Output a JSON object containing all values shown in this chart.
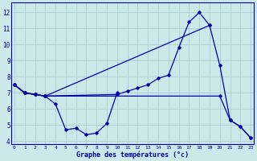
{
  "xlabel": "Graphe des températures (°c)",
  "bg_color": "#cce8e8",
  "line_color": "#0000aa",
  "grid_color": "#aad0d0",
  "xlim": [
    -0.3,
    23.3
  ],
  "ylim": [
    3.8,
    12.6
  ],
  "yticks": [
    4,
    5,
    6,
    7,
    8,
    9,
    10,
    11,
    12
  ],
  "xticks": [
    0,
    1,
    2,
    3,
    4,
    5,
    6,
    7,
    8,
    9,
    10,
    11,
    12,
    13,
    14,
    15,
    16,
    17,
    18,
    19,
    20,
    21,
    22,
    23
  ],
  "series": [
    {
      "x": [
        0,
        1,
        2,
        3,
        4,
        5,
        6,
        7,
        8,
        9,
        10
      ],
      "y": [
        7.5,
        7.0,
        6.9,
        6.8,
        6.3,
        4.7,
        4.8,
        4.4,
        4.5,
        5.1,
        7.0
      ]
    },
    {
      "x": [
        0,
        1,
        2,
        3,
        10,
        11,
        12,
        13,
        14,
        15,
        16,
        17,
        18,
        19
      ],
      "y": [
        7.5,
        7.0,
        6.9,
        6.8,
        6.9,
        7.1,
        7.3,
        7.5,
        7.9,
        8.1,
        9.8,
        11.4,
        12.0,
        11.2
      ]
    },
    {
      "x": [
        0,
        1,
        2,
        3,
        19,
        20,
        21,
        22,
        23
      ],
      "y": [
        7.5,
        7.0,
        6.9,
        6.8,
        11.2,
        8.7,
        5.3,
        4.9,
        4.2
      ]
    },
    {
      "x": [
        0,
        1,
        2,
        3,
        20,
        21,
        22,
        23
      ],
      "y": [
        7.5,
        7.0,
        6.9,
        6.8,
        6.8,
        5.3,
        4.9,
        4.2
      ]
    }
  ]
}
